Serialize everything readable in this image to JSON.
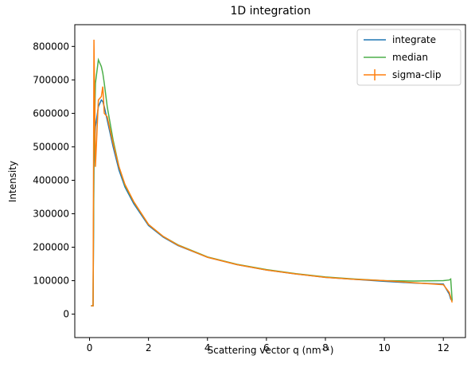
{
  "chart_data": {
    "type": "line",
    "title": "1D integration",
    "xlabel": "Scattering vector q (nm⁻¹)",
    "ylabel": "Intensity",
    "x": [
      0.05,
      0.12,
      0.15,
      0.2,
      0.3,
      0.4,
      0.45,
      0.5,
      0.6,
      0.8,
      1.0,
      1.2,
      1.5,
      2,
      2.5,
      3,
      4,
      5,
      6,
      7,
      8,
      9,
      10,
      11,
      12,
      12.2,
      12.25,
      12.3
    ],
    "series": [
      {
        "name": "integrate",
        "color": "#1f77b4",
        "values": [
          25000,
          25000,
          450000,
          560000,
          620000,
          640000,
          635000,
          620000,
          580000,
          500000,
          430000,
          380000,
          330000,
          265000,
          230000,
          205000,
          170000,
          148000,
          132000,
          120000,
          110000,
          104000,
          98000,
          93000,
          90000,
          60000,
          45000,
          40000
        ]
      },
      {
        "name": "median",
        "color": "#4daf4a",
        "values": [
          25000,
          25000,
          480000,
          690000,
          760000,
          740000,
          720000,
          690000,
          620000,
          520000,
          440000,
          385000,
          335000,
          268000,
          232000,
          207000,
          171000,
          149000,
          133000,
          121000,
          111000,
          105000,
          100000,
          99000,
          100000,
          102000,
          105000,
          40000
        ]
      },
      {
        "name": "sigma-clip",
        "color": "#ff7f0e",
        "values": [
          25000,
          25000,
          820000,
          440000,
          640000,
          650000,
          680000,
          600000,
          590000,
          510000,
          440000,
          388000,
          336000,
          268000,
          232000,
          206000,
          170000,
          148000,
          132000,
          120000,
          110000,
          104000,
          100000,
          94000,
          88000,
          65000,
          50000,
          35000
        ]
      }
    ],
    "xlim": [
      -0.5,
      12.75
    ],
    "ylim": [
      -70000,
      865000
    ],
    "xticks": [
      0,
      2,
      4,
      6,
      8,
      10,
      12
    ],
    "yticks": [
      0,
      100000,
      200000,
      300000,
      400000,
      500000,
      600000,
      700000,
      800000
    ],
    "legend": "upper right"
  }
}
